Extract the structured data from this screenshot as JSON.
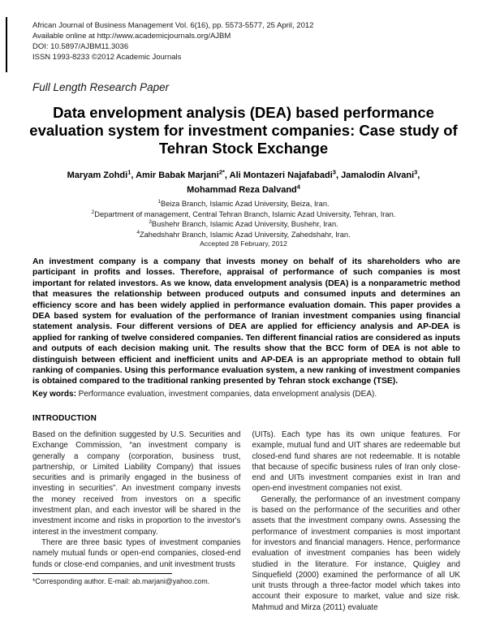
{
  "journal": {
    "line1": "African Journal of Business Management Vol. 6(16), pp. 5573-5577, 25 April, 2012",
    "line2": "Available online at http://www.academicjournals.org/AJBM",
    "line3": "DOI: 10.5897/AJBM11.3036",
    "line4": "ISSN 1993-8233 ©2012 Academic Journals"
  },
  "article": {
    "type_label": "Full Length Research Paper",
    "title": "Data envelopment analysis (DEA) based performance evaluation system for investment companies: Case study of Tehran Stock Exchange",
    "authors": [
      {
        "name": "Maryam Zohdi",
        "sup": "1",
        "sep": ", "
      },
      {
        "name": "Amir Babak Marjani",
        "sup": "2*",
        "sep": ", "
      },
      {
        "name": "Ali Montazeri Najafabadi",
        "sup": "3",
        "sep": ", "
      },
      {
        "name": "Jamalodin Alvani",
        "sup": "3",
        "sep": ","
      },
      {
        "name": "Mohammad Reza Dalvand",
        "sup": "4",
        "sep": ""
      }
    ],
    "affiliations": [
      {
        "sup": "1",
        "text": "Beiza Branch, Islamic Azad University, Beiza, Iran."
      },
      {
        "sup": "2",
        "text": "Department of management, Central Tehran Branch, Islamic Azad University, Tehran, Iran."
      },
      {
        "sup": "3",
        "text": "Bushehr Branch, Islamic Azad University, Bushehr, Iran."
      },
      {
        "sup": "4",
        "text": "Zahedshahr Branch, Islamic Azad University, Zahedshahr, Iran."
      }
    ],
    "accepted": "Accepted 28 February, 2012",
    "abstract": "An investment company is a company that invests money on behalf of its shareholders who are participant in profits and losses. Therefore, appraisal of performance of such companies is most important for related investors. As we know, data envelopment analysis (DEA) is a nonparametric method that measures the relationship between produced outputs and consumed inputs and determines an efficiency score and has been widely applied in performance evaluation domain. This paper provides a DEA based system for evaluation of the performance of Iranian investment companies using financial statement analysis. Four different versions of DEA are applied for efficiency analysis and AP-DEA is applied for ranking of twelve considered companies. Ten different financial ratios are considered as inputs and outputs of each decision making unit. The results show that the BCC form of DEA is not able to distinguish between efficient and inefficient units and AP-DEA is an appropriate method to obtain full ranking of companies. Using this performance evaluation system, a new ranking of investment companies is obtained compared to the traditional ranking presented by Tehran stock exchange (TSE).",
    "keywords_label": "Key words:",
    "keywords_text": " Performance evaluation, investment companies, data envelopment analysis (DEA).",
    "section_heading": "INTRODUCTION",
    "left_column": {
      "p1": "Based on the definition suggested by U.S. Securities and Exchange Commission, “an investment company is generally a company (corporation, business trust, partnership, or Limited Liability Company) that issues securities and is primarily engaged in the business of investing in securities”. An investment company invests the money received from investors on a specific investment plan, and each investor will be shared in the investment income and risks in proportion to the investor's interest in the investment company.",
      "p2": "There are three basic types of investment companies namely mutual funds or open-end companies, closed-end funds or close-end companies, and unit investment trusts"
    },
    "right_column": {
      "p1": "(UITs). Each type has its own unique features. For example, mutual fund and UIT shares are redeemable but closed-end fund shares are not redeemable. It is notable that because of specific business rules of Iran only close-end and UITs investment companies exist in Iran and open-end investment companies not exist.",
      "p2": "Generally, the performance of an investment company is based on the performance of the securities and other assets that the investment company owns. Assessing the performance of investment companies is most important for investors and financial managers. Hence, performance evaluation of investment companies has been widely studied in the literature. For instance, Quigley and Sinquefield (2000) examined the performance of all UK unit trusts through a three-factor model which takes into account their exposure to market, value and size risk. Mahmud and Mirza (2011) evaluate"
    },
    "footnote": "*Corresponding author. E-mail: ab.marjani@yahoo.com."
  }
}
